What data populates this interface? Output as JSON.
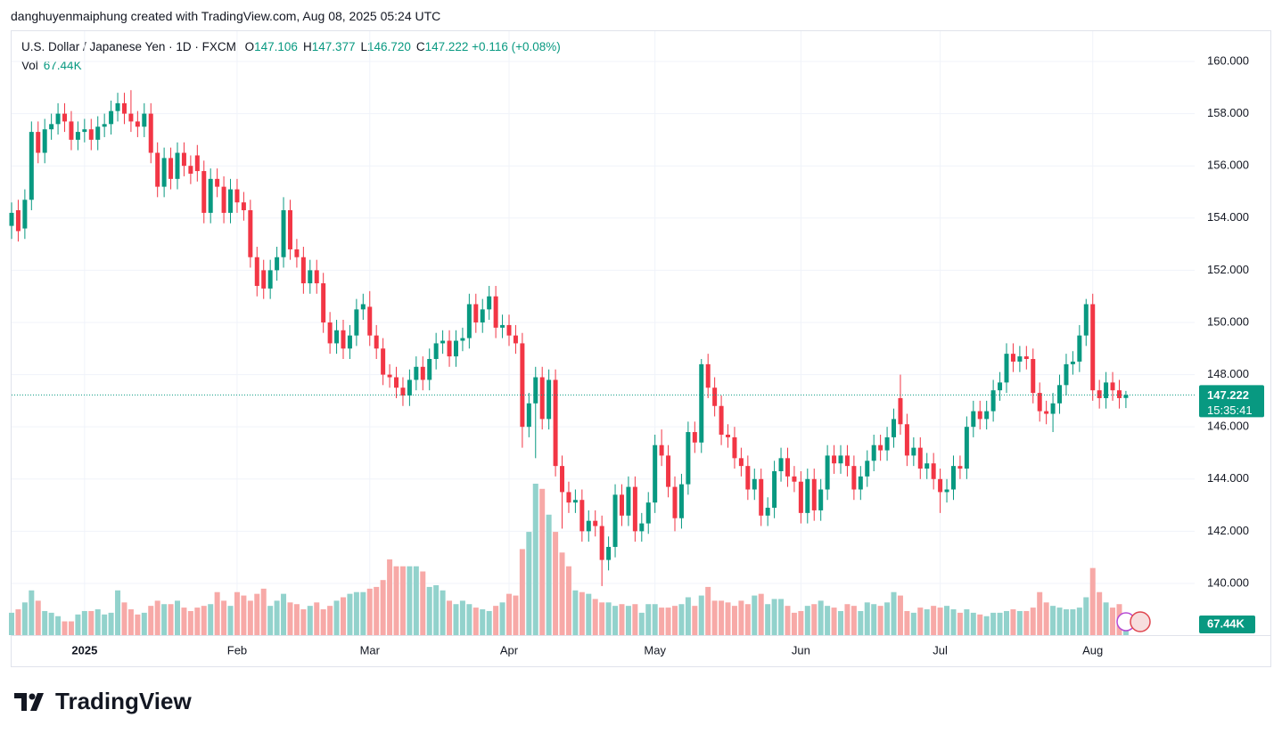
{
  "header": {
    "credit": "danghuyenmaiphung created with TradingView.com, Aug 08, 2025 05:24 UTC",
    "symbol": "U.S. Dollar / Japanese Yen · 1D · FXCM",
    "ohlc": [
      {
        "key": "O",
        "value": "147.106"
      },
      {
        "key": "H",
        "value": "147.377"
      },
      {
        "key": "L",
        "value": "146.720"
      },
      {
        "key": "C",
        "value": "147.222"
      }
    ],
    "change": "+0.116 (+0.08%)",
    "vol_title": "Vol",
    "vol_value": "67.44K"
  },
  "footer": {
    "brand": "TradingView"
  },
  "chart_data": {
    "type": "candlestick",
    "up_color": "#089981",
    "down_color": "#f23645",
    "volume_up_color": "#92d2cc",
    "volume_down_color": "#f7a9a7",
    "grid": true,
    "ylim": [
      138.02,
      161.16
    ],
    "yticks": [
      {
        "value": 140,
        "label": "140.000"
      },
      {
        "value": 142,
        "label": "142.000"
      },
      {
        "value": 144,
        "label": "144.000"
      },
      {
        "value": 146,
        "label": "146.000"
      },
      {
        "value": 148,
        "label": "148.000"
      },
      {
        "value": 150,
        "label": "150.000"
      },
      {
        "value": 152,
        "label": "152.000"
      },
      {
        "value": 154,
        "label": "154.000"
      },
      {
        "value": 156,
        "label": "156.000"
      },
      {
        "value": 158,
        "label": "158.000"
      },
      {
        "value": 160,
        "label": "160.000"
      }
    ],
    "xticks": [
      {
        "value": 11,
        "label": "2025"
      },
      {
        "value": 34,
        "label": "Feb"
      },
      {
        "value": 54,
        "label": "Mar"
      },
      {
        "value": 75,
        "label": "Apr"
      },
      {
        "value": 97,
        "label": "May"
      },
      {
        "value": 119,
        "label": "Jun"
      },
      {
        "value": 140,
        "label": "Jul"
      },
      {
        "value": 163,
        "label": "Aug"
      }
    ],
    "last_price_label": "147.222",
    "countdown": "15:35:41",
    "volume_last_label": "67.44K",
    "open": [
      153.7,
      154.3,
      153.6,
      154.7,
      157.3,
      156.5,
      157.4,
      157.6,
      158.0,
      157.7,
      157.0,
      157.3,
      157.4,
      157.0,
      157.5,
      157.6,
      158.1,
      158.4,
      158.0,
      157.7,
      157.5,
      158.0,
      156.5,
      155.2,
      156.3,
      155.5,
      156.5,
      156.0,
      156.4,
      155.8,
      154.2,
      155.5,
      155.2,
      154.2,
      155.1,
      154.6,
      154.3,
      152.5,
      152.0,
      151.3,
      152.0,
      152.5,
      154.3,
      152.8,
      152.5,
      151.5,
      152.0,
      151.5,
      150.0,
      149.2,
      149.7,
      149.0,
      149.5,
      150.5,
      150.6,
      149.5,
      149.0,
      148.0,
      147.9,
      147.5,
      147.2,
      147.8,
      148.3,
      147.8,
      148.6,
      149.2,
      149.3,
      148.7,
      149.3,
      149.4,
      150.7,
      150.0,
      150.5,
      151.0,
      149.8,
      149.9,
      149.5,
      149.2,
      146.0,
      146.9,
      147.9,
      146.3,
      147.8,
      144.5,
      143.5,
      143.1,
      143.2,
      142.0,
      142.4,
      142.2,
      140.9,
      141.4,
      143.4,
      142.6,
      143.7,
      142.0,
      142.3,
      143.1,
      145.3,
      144.9,
      143.7,
      142.5,
      143.8,
      145.8,
      145.4,
      148.4,
      147.5,
      146.8,
      145.7,
      145.6,
      144.8,
      144.5,
      143.6,
      144.0,
      142.6,
      142.9,
      144.3,
      144.8,
      144.1,
      143.9,
      142.7,
      144.0,
      142.8,
      143.6,
      144.9,
      144.6,
      144.9,
      144.5,
      143.6,
      144.1,
      144.7,
      145.3,
      145.1,
      145.6,
      147.1,
      146.1,
      144.9,
      145.2,
      144.4,
      144.6,
      144.0,
      143.5,
      143.6,
      144.5,
      144.4,
      146.0,
      146.6,
      146.3,
      146.6,
      147.4,
      147.7,
      148.8,
      148.5,
      148.7,
      148.6,
      147.3,
      146.6,
      146.5,
      146.9,
      147.6,
      148.4,
      148.5,
      149.5,
      150.7,
      147.4,
      147.1,
      147.7,
      147.4,
      147.106
    ],
    "high": [
      154.6,
      154.7,
      155.1,
      157.7,
      157.7,
      157.8,
      158.0,
      158.4,
      158.4,
      158.1,
      157.7,
      157.8,
      157.8,
      157.9,
      158.0,
      158.5,
      158.8,
      158.8,
      158.9,
      158.1,
      158.4,
      158.4,
      156.9,
      156.7,
      156.7,
      156.9,
      156.9,
      156.4,
      156.8,
      156.2,
      155.9,
      155.9,
      155.6,
      155.5,
      155.5,
      155.0,
      154.7,
      152.9,
      152.4,
      152.4,
      152.9,
      154.8,
      154.7,
      153.2,
      152.9,
      152.4,
      152.4,
      151.9,
      150.4,
      150.1,
      150.1,
      149.9,
      150.9,
      151.1,
      151.2,
      149.9,
      149.4,
      148.4,
      148.3,
      147.9,
      148.2,
      148.7,
      148.7,
      149.0,
      149.6,
      149.7,
      149.7,
      149.7,
      149.8,
      151.1,
      151.1,
      150.9,
      151.4,
      151.4,
      150.3,
      150.3,
      149.9,
      149.6,
      147.3,
      148.3,
      148.3,
      148.2,
      148.2,
      144.9,
      143.9,
      143.6,
      143.6,
      142.8,
      142.8,
      142.6,
      141.8,
      143.8,
      143.8,
      144.1,
      144.1,
      142.7,
      143.5,
      145.7,
      145.9,
      145.3,
      144.1,
      144.2,
      146.2,
      146.2,
      148.6,
      148.8,
      147.9,
      147.2,
      146.1,
      146.0,
      145.2,
      144.9,
      144.4,
      144.4,
      143.3,
      144.7,
      145.2,
      145.2,
      144.5,
      144.3,
      144.4,
      144.4,
      144.0,
      145.3,
      145.3,
      145.3,
      145.3,
      144.9,
      144.5,
      145.1,
      145.7,
      145.7,
      146.0,
      146.7,
      148.0,
      146.5,
      145.6,
      145.6,
      145.0,
      145.0,
      144.4,
      144.0,
      144.9,
      144.9,
      146.4,
      147.0,
      147.0,
      147.0,
      147.8,
      148.1,
      149.2,
      149.2,
      149.1,
      149.1,
      149.0,
      147.7,
      147.0,
      147.3,
      148.0,
      148.8,
      148.9,
      149.9,
      150.9,
      151.1,
      147.8,
      148.1,
      148.1,
      147.8,
      147.377
    ],
    "low": [
      153.2,
      153.1,
      153.2,
      154.3,
      156.1,
      156.1,
      157.0,
      157.2,
      157.3,
      156.6,
      156.6,
      156.9,
      156.6,
      156.6,
      157.1,
      157.2,
      157.7,
      157.6,
      157.3,
      157.1,
      157.1,
      156.1,
      154.8,
      154.8,
      155.1,
      155.1,
      155.6,
      155.3,
      155.4,
      153.8,
      153.8,
      154.8,
      153.8,
      153.8,
      154.2,
      153.9,
      152.1,
      151.0,
      150.9,
      150.9,
      151.6,
      152.1,
      152.4,
      152.1,
      151.1,
      151.1,
      151.1,
      149.6,
      148.8,
      148.8,
      148.6,
      148.6,
      149.1,
      150.1,
      149.1,
      148.6,
      147.6,
      147.5,
      147.1,
      146.8,
      146.8,
      147.4,
      147.4,
      147.4,
      148.2,
      148.8,
      148.3,
      148.3,
      148.9,
      149.0,
      149.6,
      149.6,
      150.1,
      149.4,
      149.4,
      149.1,
      148.8,
      145.2,
      145.6,
      144.8,
      145.9,
      145.9,
      144.1,
      142.1,
      142.7,
      142.7,
      141.6,
      141.6,
      141.8,
      139.9,
      140.5,
      141.0,
      142.2,
      142.2,
      141.6,
      141.6,
      141.9,
      142.7,
      144.5,
      143.3,
      142.0,
      142.1,
      143.4,
      145.0,
      145.0,
      147.1,
      146.4,
      145.3,
      145.2,
      144.4,
      144.1,
      143.2,
      143.2,
      142.2,
      142.2,
      142.5,
      143.9,
      143.7,
      143.5,
      142.3,
      142.3,
      142.4,
      142.4,
      143.2,
      144.2,
      144.2,
      144.1,
      143.2,
      143.2,
      143.7,
      144.3,
      144.7,
      144.7,
      145.2,
      145.7,
      144.5,
      144.5,
      144.0,
      144.0,
      143.6,
      142.7,
      143.1,
      143.2,
      144.0,
      144.0,
      145.6,
      145.9,
      145.9,
      146.2,
      147.0,
      147.3,
      148.1,
      148.1,
      148.2,
      146.9,
      146.2,
      146.1,
      145.8,
      146.5,
      147.2,
      148.0,
      148.1,
      149.1,
      147.0,
      146.7,
      146.7,
      147.0,
      146.7,
      146.72
    ],
    "close": [
      154.2,
      153.5,
      154.7,
      157.3,
      156.5,
      157.4,
      157.6,
      158.0,
      157.7,
      157.0,
      157.3,
      157.4,
      157.0,
      157.5,
      157.6,
      158.1,
      158.4,
      158.0,
      157.7,
      157.5,
      158.0,
      156.5,
      155.2,
      156.3,
      155.5,
      156.5,
      156.0,
      155.7,
      155.8,
      154.2,
      155.5,
      155.2,
      154.2,
      155.1,
      154.6,
      154.3,
      152.5,
      151.4,
      151.3,
      152.0,
      152.5,
      154.3,
      152.8,
      152.5,
      151.5,
      152.0,
      151.5,
      150.0,
      149.2,
      149.7,
      149.0,
      149.5,
      150.5,
      150.7,
      149.5,
      149.0,
      148.0,
      147.9,
      147.5,
      147.2,
      147.8,
      148.3,
      147.8,
      148.6,
      149.2,
      149.3,
      148.7,
      149.3,
      149.4,
      150.7,
      150.0,
      150.5,
      151.0,
      149.8,
      149.9,
      149.5,
      149.2,
      146.0,
      146.9,
      147.9,
      146.3,
      147.8,
      144.5,
      143.5,
      143.1,
      143.2,
      142.0,
      142.4,
      142.2,
      140.9,
      141.4,
      143.4,
      142.6,
      143.7,
      142.0,
      142.3,
      143.1,
      145.3,
      144.9,
      143.7,
      142.5,
      143.8,
      145.8,
      145.4,
      148.4,
      147.5,
      146.8,
      145.7,
      145.6,
      144.8,
      144.5,
      143.6,
      144.0,
      142.6,
      142.9,
      144.3,
      144.8,
      144.1,
      143.9,
      142.7,
      144.0,
      142.8,
      143.6,
      144.9,
      144.6,
      144.9,
      144.5,
      143.6,
      144.1,
      144.7,
      145.3,
      145.1,
      145.6,
      146.3,
      146.1,
      144.9,
      145.2,
      144.4,
      144.6,
      144.0,
      143.5,
      143.6,
      144.5,
      144.4,
      146.0,
      146.6,
      146.3,
      146.6,
      147.4,
      147.7,
      148.8,
      148.5,
      148.7,
      148.6,
      147.3,
      146.6,
      146.5,
      146.9,
      147.6,
      148.4,
      148.5,
      149.5,
      150.7,
      147.4,
      147.1,
      147.7,
      147.4,
      147.1,
      147.222
    ],
    "volume": [
      130000,
      150000,
      190000,
      260000,
      200000,
      140000,
      130000,
      110000,
      80000,
      80000,
      120000,
      140000,
      140000,
      150000,
      120000,
      130000,
      260000,
      190000,
      150000,
      120000,
      130000,
      170000,
      200000,
      180000,
      180000,
      200000,
      160000,
      140000,
      160000,
      170000,
      180000,
      250000,
      200000,
      170000,
      250000,
      230000,
      200000,
      240000,
      270000,
      170000,
      200000,
      240000,
      190000,
      180000,
      150000,
      170000,
      190000,
      150000,
      170000,
      200000,
      220000,
      240000,
      250000,
      250000,
      270000,
      280000,
      320000,
      440000,
      400000,
      400000,
      400000,
      400000,
      370000,
      280000,
      290000,
      260000,
      200000,
      180000,
      200000,
      180000,
      160000,
      150000,
      140000,
      170000,
      190000,
      240000,
      230000,
      500000,
      600000,
      880000,
      850000,
      700000,
      600000,
      480000,
      400000,
      260000,
      250000,
      240000,
      210000,
      190000,
      190000,
      170000,
      180000,
      170000,
      180000,
      130000,
      180000,
      180000,
      160000,
      160000,
      170000,
      180000,
      220000,
      170000,
      230000,
      280000,
      200000,
      200000,
      190000,
      170000,
      200000,
      180000,
      230000,
      240000,
      180000,
      210000,
      210000,
      170000,
      130000,
      140000,
      170000,
      180000,
      200000,
      170000,
      160000,
      140000,
      180000,
      170000,
      140000,
      190000,
      180000,
      170000,
      190000,
      250000,
      230000,
      140000,
      130000,
      160000,
      150000,
      170000,
      160000,
      170000,
      150000,
      130000,
      150000,
      130000,
      120000,
      110000,
      130000,
      130000,
      140000,
      150000,
      140000,
      140000,
      160000,
      250000,
      190000,
      170000,
      160000,
      150000,
      150000,
      160000,
      220000,
      390000,
      250000,
      190000,
      160000,
      180000,
      67440
    ]
  }
}
